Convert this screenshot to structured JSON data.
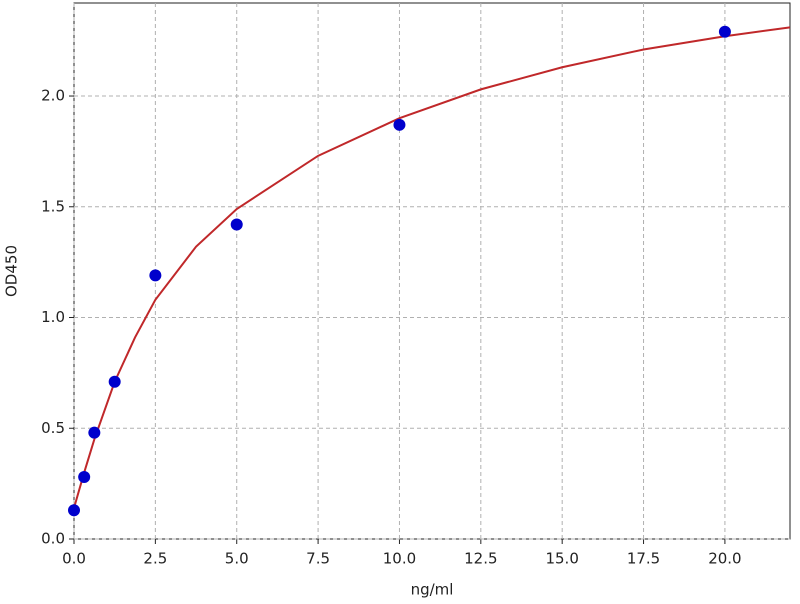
{
  "chart_data": {
    "type": "scatter",
    "x_label": "ng/ml",
    "y_label": "OD450",
    "xlim": [
      0,
      22
    ],
    "ylim": [
      0,
      2.42
    ],
    "xticks": [
      {
        "value": 0,
        "label": "0.0"
      },
      2.5,
      {
        "value": 5,
        "label": "5.0"
      },
      7.5,
      {
        "value": 10,
        "label": "10.0"
      },
      12.5,
      {
        "value": 15,
        "label": "15.0"
      },
      17.5,
      {
        "value": 20,
        "label": "20.0"
      }
    ],
    "yticks": [
      {
        "value": 0,
        "label": "0.0"
      },
      0.5,
      {
        "value": 1,
        "label": "1.0"
      },
      1.5,
      {
        "value": 2,
        "label": "2.0"
      }
    ],
    "grid": true,
    "x": [
      0,
      0.3125,
      0.625,
      1.25,
      2.5,
      5,
      10,
      20
    ],
    "values": [
      0.13,
      0.28,
      0.48,
      0.71,
      1.19,
      1.42,
      1.87,
      2.29
    ],
    "color": "#0000cc",
    "curve": {
      "color": "#c0282a",
      "x": [
        0,
        0.3125,
        0.625,
        1.25,
        1.875,
        2.5,
        3.75,
        5,
        7.5,
        10,
        12.5,
        15,
        17.5,
        20,
        22
      ],
      "values": [
        0.14,
        0.3,
        0.45,
        0.71,
        0.91,
        1.08,
        1.32,
        1.49,
        1.73,
        1.9,
        2.03,
        2.13,
        2.21,
        2.27,
        2.31
      ]
    }
  }
}
